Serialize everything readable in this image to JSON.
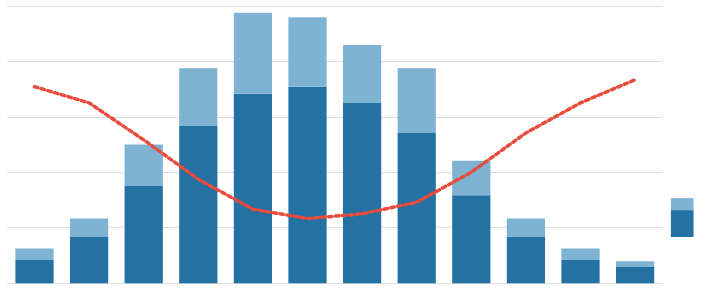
{
  "chart_data": [
    {
      "type": "bar",
      "categories": [
        null,
        null,
        null,
        null,
        null,
        null,
        null,
        null,
        null,
        null,
        null,
        null
      ],
      "stacked": true,
      "series": [
        {
          "type": "bar",
          "color": "#2471a3",
          "values": [
            1.0,
            2.0,
            4.2,
            6.8,
            8.2,
            8.5,
            7.8,
            6.5,
            3.8,
            2.0,
            1.0,
            0.7
          ]
        },
        {
          "type": "bar",
          "color": "#7fb3d3",
          "values": [
            0.5,
            0.8,
            1.8,
            2.5,
            3.5,
            3.0,
            2.5,
            2.8,
            1.5,
            0.8,
            0.5,
            0.25
          ]
        },
        {
          "type": "line",
          "color": "#e74c3c",
          "line_style": "dotted",
          "values": [
            8.5,
            7.8,
            6.2,
            4.5,
            3.2,
            2.8,
            3.0,
            3.5,
            4.8,
            6.5,
            7.8,
            8.8
          ]
        }
      ],
      "ylim": [
        0,
        12
      ],
      "yticks": [
        0,
        2.4,
        4.8,
        7.2,
        9.6,
        12
      ],
      "grid": true,
      "tick_labels": false
    },
    {
      "type": "bar",
      "categories": [
        null
      ],
      "stacked": true,
      "series": [
        {
          "type": "bar",
          "color": "#2471a3",
          "values": [
            1.8
          ]
        },
        {
          "type": "bar",
          "color": "#7fb3d3",
          "values": [
            0.8
          ]
        }
      ],
      "ylim": [
        0,
        12
      ],
      "grid": false,
      "tick_labels": false
    }
  ]
}
